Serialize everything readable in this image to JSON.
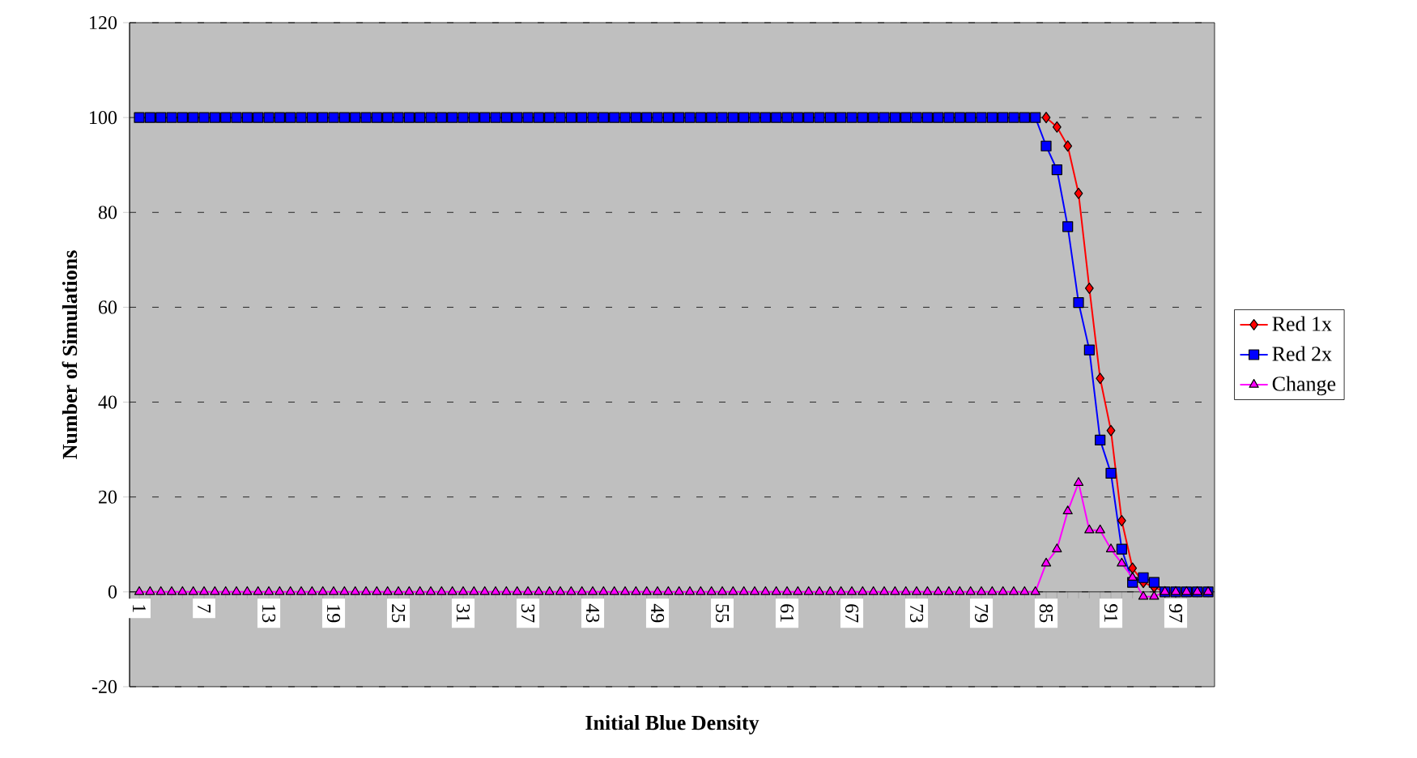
{
  "chart_data": {
    "type": "line",
    "xlabel": "Initial Blue Density",
    "ylabel": "Number of Simulations",
    "categories": [
      "1",
      null,
      null,
      null,
      null,
      null,
      "7",
      null,
      null,
      null,
      null,
      null,
      "13",
      null,
      null,
      null,
      null,
      null,
      "19",
      null,
      null,
      null,
      null,
      null,
      "25",
      null,
      null,
      null,
      null,
      null,
      "31",
      null,
      null,
      null,
      null,
      null,
      "37",
      null,
      null,
      null,
      null,
      null,
      "43",
      null,
      null,
      null,
      null,
      null,
      "49",
      null,
      null,
      null,
      null,
      null,
      "55",
      null,
      null,
      null,
      null,
      null,
      "61",
      null,
      null,
      null,
      null,
      null,
      "67",
      null,
      null,
      null,
      null,
      null,
      "73",
      null,
      null,
      null,
      null,
      null,
      "79",
      null,
      null,
      null,
      null,
      null,
      "85",
      null,
      null,
      null,
      null,
      null,
      "91",
      null,
      null,
      null,
      null,
      null,
      "97",
      null,
      null,
      null
    ],
    "series": [
      {
        "name": "Red 1x",
        "color": "#ff0000",
        "marker": "diamond",
        "values": [
          null,
          null,
          null,
          null,
          null,
          null,
          null,
          null,
          null,
          null,
          null,
          null,
          null,
          null,
          null,
          null,
          null,
          null,
          null,
          null,
          null,
          null,
          null,
          null,
          null,
          null,
          null,
          null,
          null,
          null,
          null,
          null,
          null,
          null,
          null,
          null,
          null,
          null,
          null,
          null,
          null,
          null,
          null,
          null,
          null,
          null,
          null,
          null,
          null,
          null,
          null,
          null,
          null,
          null,
          null,
          null,
          null,
          null,
          null,
          null,
          null,
          null,
          null,
          null,
          null,
          null,
          null,
          null,
          null,
          null,
          null,
          null,
          null,
          null,
          null,
          null,
          null,
          null,
          null,
          null,
          null,
          null,
          null,
          null,
          100,
          98,
          94,
          84,
          64,
          45,
          34,
          15,
          5,
          2,
          1,
          0,
          0,
          null,
          null,
          null
        ]
      },
      {
        "name": "Red 2x",
        "color": "#0000ff",
        "marker": "square",
        "values": [
          100,
          100,
          100,
          100,
          100,
          100,
          100,
          100,
          100,
          100,
          100,
          100,
          100,
          100,
          100,
          100,
          100,
          100,
          100,
          100,
          100,
          100,
          100,
          100,
          100,
          100,
          100,
          100,
          100,
          100,
          100,
          100,
          100,
          100,
          100,
          100,
          100,
          100,
          100,
          100,
          100,
          100,
          100,
          100,
          100,
          100,
          100,
          100,
          100,
          100,
          100,
          100,
          100,
          100,
          100,
          100,
          100,
          100,
          100,
          100,
          100,
          100,
          100,
          100,
          100,
          100,
          100,
          100,
          100,
          100,
          100,
          100,
          100,
          100,
          100,
          100,
          100,
          100,
          100,
          100,
          100,
          100,
          100,
          100,
          94,
          89,
          77,
          61,
          51,
          32,
          25,
          9,
          2,
          3,
          2,
          0,
          0,
          0,
          0,
          0
        ]
      },
      {
        "name": "Change",
        "color": "#ff00ff",
        "marker": "triangle",
        "values": [
          0,
          0,
          0,
          0,
          0,
          0,
          0,
          0,
          0,
          0,
          0,
          0,
          0,
          0,
          0,
          0,
          0,
          0,
          0,
          0,
          0,
          0,
          0,
          0,
          0,
          0,
          0,
          0,
          0,
          0,
          0,
          0,
          0,
          0,
          0,
          0,
          0,
          0,
          0,
          0,
          0,
          0,
          0,
          0,
          0,
          0,
          0,
          0,
          0,
          0,
          0,
          0,
          0,
          0,
          0,
          0,
          0,
          0,
          0,
          0,
          0,
          0,
          0,
          0,
          0,
          0,
          0,
          0,
          0,
          0,
          0,
          0,
          0,
          0,
          0,
          0,
          0,
          0,
          0,
          0,
          0,
          0,
          0,
          0,
          6,
          9,
          17,
          23,
          13,
          13,
          9,
          6,
          3,
          -1,
          -1,
          0,
          0,
          0,
          0,
          0
        ]
      }
    ],
    "ylim": [
      -20,
      120
    ],
    "yticks": [
      -20,
      0,
      20,
      40,
      60,
      80,
      100,
      120
    ],
    "grid": "y",
    "legend": "right"
  }
}
